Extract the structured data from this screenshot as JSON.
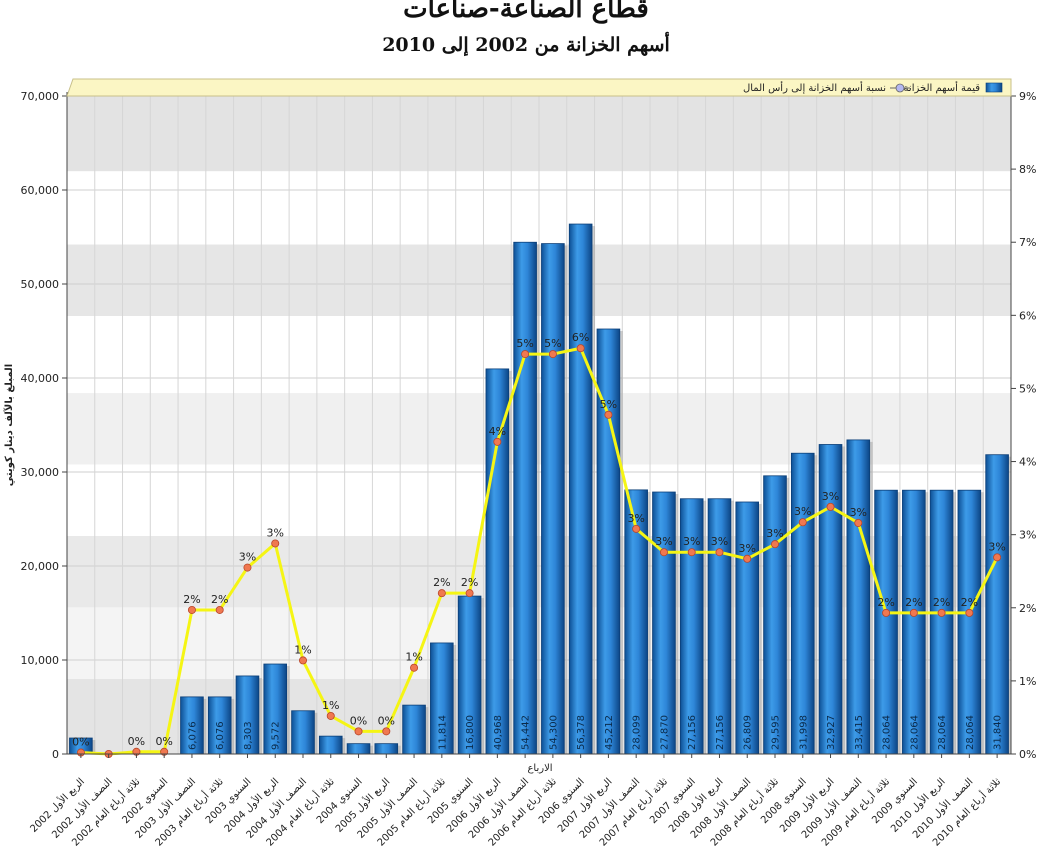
{
  "chart_data": {
    "type": "bar",
    "title": "قطاع الصناعة-صناعات",
    "subtitle": "أسهم الخزانة من 2002 إلى 2010",
    "xlabel": "الارباع",
    "ylabel": "المبلغ بالآلف دينار كويتي",
    "ylim": [
      0,
      70000
    ],
    "y2lim": [
      0,
      9
    ],
    "y_ticks": [
      "0",
      "10,000",
      "20,000",
      "30,000",
      "40,000",
      "50,000",
      "60,000",
      "70,000"
    ],
    "y2_ticks": [
      "0%",
      "1%",
      "2%",
      "3%",
      "4%",
      "5%",
      "6%",
      "7%",
      "8%",
      "9%"
    ],
    "legend_position": "top-right",
    "grid": true,
    "categories": [
      "الربع الأول 2002",
      "النصف الأول 2002",
      "ثلاثة أرباع العام 2002",
      "السنوي 2002",
      "النصف الأول 2003",
      "ثلاثة أرباع العام 2003",
      "السنوي 2003",
      "الربع الأول 2004",
      "النصف الأول 2004",
      "ثلاثة أرباع العام 2004",
      "السنوي 2004",
      "الربع الأول 2005",
      "النصف الأول 2005",
      "ثلاثة أرباع العام 2005",
      "السنوي 2005",
      "الربع الأول 2006",
      "النصف الأول 2006",
      "ثلاثة أرباع العام 2006",
      "السنوي 2006",
      "الربع الأول 2007",
      "النصف الأول 2007",
      "ثلاثة أرباع العام 2007",
      "السنوي 2007",
      "الربع الأول 2008",
      "النصف الأول 2008",
      "ثلاثة أرباع العام 2008",
      "السنوي 2008",
      "الربع الأول 2009",
      "النصف الأول 2009",
      "ثلاثة أرباع العام 2009",
      "السنوي 2009",
      "الربع الأول 2010",
      "النصف الأول 2010",
      "ثلاثة أرباع العام 2010"
    ],
    "series": [
      {
        "name": "قيمة أسهم الخزانة",
        "type": "bar",
        "color": "#2a7fd0",
        "values": [
          1700,
          0,
          0,
          0,
          6076,
          6076,
          8303,
          9572,
          4600,
          1900,
          1100,
          1100,
          5200,
          11814,
          16800,
          40968,
          54442,
          54300,
          56378,
          45212,
          28099,
          27870,
          27156,
          27156,
          26809,
          29595,
          31998,
          32927,
          33415,
          28064,
          28064,
          28064,
          28064,
          31840
        ],
        "labels": [
          "",
          "",
          "",
          "",
          "6,076",
          "6,076",
          "8,303",
          "9,572",
          "",
          "",
          "",
          "",
          "",
          "11,814",
          "16,800",
          "40,968",
          "54,442",
          "54,300",
          "56,378",
          "45,212",
          "28,099",
          "27,870",
          "27,156",
          "27,156",
          "26,809",
          "29,595",
          "31,998",
          "32,927",
          "33,415",
          "28,064",
          "28,064",
          "28,064",
          "28,064",
          "31,840"
        ]
      },
      {
        "name": "نسبة أسهم الخزانة إلى رأس المال",
        "type": "line",
        "axis": "right",
        "color": "#f5f514",
        "marker_color": "#f07850",
        "values": [
          0.02,
          0,
          0.03,
          0.03,
          1.97,
          1.97,
          2.55,
          2.88,
          1.28,
          0.52,
          0.31,
          0.31,
          1.18,
          2.2,
          2.2,
          4.27,
          5.47,
          5.47,
          5.55,
          4.64,
          3.08,
          2.76,
          2.76,
          2.76,
          2.67,
          2.87,
          3.17,
          3.38,
          3.16,
          1.93,
          1.93,
          1.93,
          1.93,
          2.69
        ],
        "labels": [
          "0%",
          "",
          "0%",
          "0%",
          "2%",
          "2%",
          "3%",
          "3%",
          "1%",
          "1%",
          "0%",
          "0%",
          "1%",
          "2%",
          "2%",
          "4%",
          "5%",
          "5%",
          "6%",
          "5%",
          "3%",
          "3%",
          "3%",
          "3%",
          "3%",
          "3%",
          "3%",
          "3%",
          "3%",
          "2%",
          "2%",
          "2%",
          "2%",
          "3%"
        ]
      }
    ]
  }
}
